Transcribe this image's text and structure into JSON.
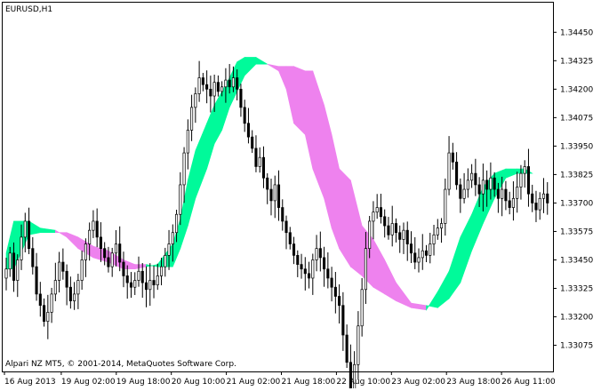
{
  "window": {
    "symbol_label": "EURUSD,H1",
    "copyright": "Alpari NZ MT5, © 2001-2014, MetaQuotes Software Corp."
  },
  "colors": {
    "background": "#ffffff",
    "frame": "#000000",
    "bull_cloud": "#00FA9A",
    "bear_cloud": "#EE82EE",
    "candle": "#000000"
  },
  "chart_data": {
    "type": "candlestick",
    "title": "EURUSD,H1",
    "price_axis_side": "right",
    "ylim": [
      1.3296,
      1.3458
    ],
    "y_ticks": [
      "1.34450",
      "1.34325",
      "1.34200",
      "1.34075",
      "1.33950",
      "1.33825",
      "1.33700",
      "1.33575",
      "1.33450",
      "1.33325",
      "1.33200",
      "1.33075"
    ],
    "x_ticks": [
      "16 Aug 2013",
      "19 Aug 02:00",
      "19 Aug 18:00",
      "20 Aug 10:00",
      "21 Aug 02:00",
      "21 Aug 18:00",
      "22 Aug 10:00",
      "23 Aug 02:00",
      "23 Aug 18:00",
      "26 Aug 11:00"
    ],
    "grid": false,
    "close_series": [
      1.3341,
      1.3348,
      1.3336,
      1.3345,
      1.3355,
      1.3362,
      1.335,
      1.3342,
      1.333,
      1.3325,
      1.3318,
      1.3322,
      1.333,
      1.3336,
      1.3344,
      1.334,
      1.3333,
      1.3327,
      1.333,
      1.3336,
      1.3345,
      1.3352,
      1.3358,
      1.3362,
      1.3355,
      1.335,
      1.3346,
      1.3342,
      1.3348,
      1.3352,
      1.3344,
      1.3338,
      1.3335,
      1.3333,
      1.3336,
      1.334,
      1.3335,
      1.3332,
      1.3336,
      1.3334,
      1.3338,
      1.3342,
      1.3347,
      1.3352,
      1.3357,
      1.3365,
      1.3378,
      1.3392,
      1.3402,
      1.3412,
      1.3418,
      1.3425,
      1.3422,
      1.342,
      1.3417,
      1.3423,
      1.3419,
      1.3421,
      1.3424,
      1.3421,
      1.3425,
      1.342,
      1.3412,
      1.3405,
      1.3399,
      1.3394,
      1.3386,
      1.339,
      1.3381,
      1.3376,
      1.3371,
      1.3378,
      1.3368,
      1.3362,
      1.3357,
      1.3352,
      1.3347,
      1.3343,
      1.3341,
      1.3339,
      1.3337,
      1.3345,
      1.335,
      1.3346,
      1.3341,
      1.3337,
      1.3333,
      1.3329,
      1.3325,
      1.3312,
      1.33,
      1.3288,
      1.3299,
      1.3316,
      1.3332,
      1.335,
      1.3362,
      1.3366,
      1.3368,
      1.3364,
      1.336,
      1.3356,
      1.3361,
      1.3357,
      1.3354,
      1.3358,
      1.3352,
      1.3348,
      1.3344,
      1.3346,
      1.3349,
      1.3347,
      1.3352,
      1.3356,
      1.3359,
      1.3361,
      1.3376,
      1.3392,
      1.3388,
      1.3378,
      1.3372,
      1.3376,
      1.338,
      1.3383,
      1.3378,
      1.3374,
      1.338,
      1.3376,
      1.3381,
      1.3376,
      1.3372,
      1.3376,
      1.3371,
      1.3368,
      1.3372,
      1.3377,
      1.3383,
      1.3386,
      1.3374,
      1.337,
      1.3367,
      1.3372,
      1.3374,
      1.337
    ],
    "ichimoku_cloud": [
      {
        "x": 0,
        "a": 1.3348,
        "b": 1.3341
      },
      {
        "x": 2,
        "a": 1.3362,
        "b": 1.3341
      },
      {
        "x": 6,
        "a": 1.3362,
        "b": 1.3356
      },
      {
        "x": 9,
        "a": 1.3359,
        "b": 1.3357
      },
      {
        "x": 13,
        "a": 1.3358,
        "b": 1.3357
      },
      {
        "x": 16,
        "a": 1.3355,
        "b": 1.3357
      },
      {
        "x": 19,
        "a": 1.335,
        "b": 1.3355
      },
      {
        "x": 23,
        "a": 1.3346,
        "b": 1.3351
      },
      {
        "x": 27,
        "a": 1.3344,
        "b": 1.3349
      },
      {
        "x": 31,
        "a": 1.3341,
        "b": 1.3345
      },
      {
        "x": 34,
        "a": 1.3341,
        "b": 1.3343
      },
      {
        "x": 37,
        "a": 1.3342,
        "b": 1.3343
      },
      {
        "x": 40,
        "a": 1.3343,
        "b": 1.3342
      },
      {
        "x": 44,
        "a": 1.3352,
        "b": 1.3342
      },
      {
        "x": 46,
        "a": 1.3363,
        "b": 1.335
      },
      {
        "x": 48,
        "a": 1.338,
        "b": 1.336
      },
      {
        "x": 50,
        "a": 1.3393,
        "b": 1.3372
      },
      {
        "x": 53,
        "a": 1.3405,
        "b": 1.3385
      },
      {
        "x": 55,
        "a": 1.3413,
        "b": 1.3396
      },
      {
        "x": 57,
        "a": 1.3419,
        "b": 1.3402
      },
      {
        "x": 59,
        "a": 1.3425,
        "b": 1.3412
      },
      {
        "x": 61,
        "a": 1.3432,
        "b": 1.3419
      },
      {
        "x": 63,
        "a": 1.3434,
        "b": 1.3426
      },
      {
        "x": 66,
        "a": 1.3434,
        "b": 1.3431
      },
      {
        "x": 69,
        "a": 1.3431,
        "b": 1.3431
      },
      {
        "x": 72,
        "a": 1.3428,
        "b": 1.343
      },
      {
        "x": 74,
        "a": 1.342,
        "b": 1.343
      },
      {
        "x": 76,
        "a": 1.3405,
        "b": 1.343
      },
      {
        "x": 79,
        "a": 1.34,
        "b": 1.3428
      },
      {
        "x": 81,
        "a": 1.3385,
        "b": 1.3428
      },
      {
        "x": 84,
        "a": 1.3372,
        "b": 1.3413
      },
      {
        "x": 86,
        "a": 1.3359,
        "b": 1.34
      },
      {
        "x": 88,
        "a": 1.335,
        "b": 1.3385
      },
      {
        "x": 91,
        "a": 1.3342,
        "b": 1.338
      },
      {
        "x": 94,
        "a": 1.3338,
        "b": 1.336
      },
      {
        "x": 97,
        "a": 1.3333,
        "b": 1.3354
      },
      {
        "x": 100,
        "a": 1.333,
        "b": 1.3345
      },
      {
        "x": 103,
        "a": 1.3327,
        "b": 1.3335
      },
      {
        "x": 107,
        "a": 1.3324,
        "b": 1.3326
      },
      {
        "x": 111,
        "a": 1.3323,
        "b": 1.3325
      },
      {
        "x": 114,
        "a": 1.3331,
        "b": 1.3324
      },
      {
        "x": 117,
        "a": 1.334,
        "b": 1.3328
      },
      {
        "x": 120,
        "a": 1.3355,
        "b": 1.3335
      },
      {
        "x": 123,
        "a": 1.3365,
        "b": 1.3349
      },
      {
        "x": 126,
        "a": 1.3377,
        "b": 1.3361
      },
      {
        "x": 129,
        "a": 1.3383,
        "b": 1.3372
      },
      {
        "x": 132,
        "a": 1.3385,
        "b": 1.3381
      },
      {
        "x": 135,
        "a": 1.3385,
        "b": 1.3383
      },
      {
        "x": 137,
        "a": 1.3385,
        "b": 1.3383
      },
      {
        "x": 139,
        "a": 1.3383,
        "b": 1.3383
      }
    ]
  }
}
